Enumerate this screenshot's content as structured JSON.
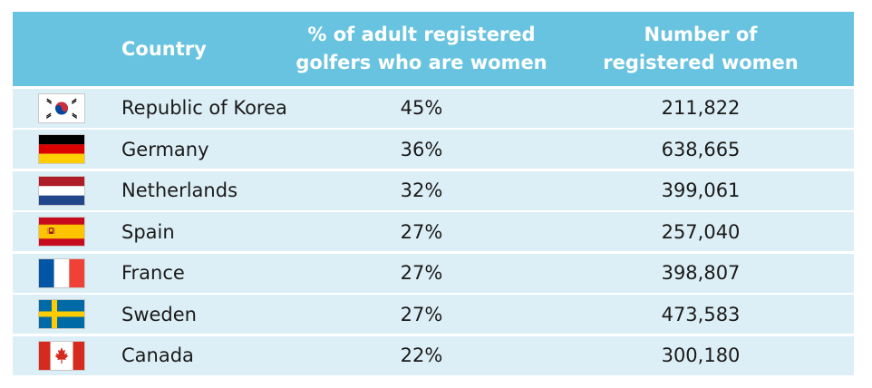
{
  "chart_data": {
    "type": "table",
    "columns": [
      "",
      "Country",
      "% of adult registered golfers who are women",
      "Number of registered women"
    ],
    "header": {
      "country": "Country",
      "pct_line1": "% of adult registered",
      "pct_line2": "golfers who are women",
      "num_line1": "Number of",
      "num_line2": "registered women"
    },
    "rows": [
      {
        "flag": "south-korea-flag-icon",
        "country": "Republic of Korea",
        "pct": "45%",
        "num": "211,822"
      },
      {
        "flag": "germany-flag-icon",
        "country": "Germany",
        "pct": "36%",
        "num": "638,665"
      },
      {
        "flag": "netherlands-flag-icon",
        "country": "Netherlands",
        "pct": "32%",
        "num": "399,061"
      },
      {
        "flag": "spain-flag-icon",
        "country": "Spain",
        "pct": "27%",
        "num": "257,040"
      },
      {
        "flag": "france-flag-icon",
        "country": "France",
        "pct": "27%",
        "num": "398,807"
      },
      {
        "flag": "sweden-flag-icon",
        "country": "Sweden",
        "pct": "27%",
        "num": "473,583"
      },
      {
        "flag": "canada-flag-icon",
        "country": "Canada",
        "pct": "22%",
        "num": "300,180"
      }
    ],
    "values_pct": [
      45,
      36,
      32,
      27,
      27,
      27,
      22
    ],
    "values_num": [
      211822,
      638665,
      399061,
      257040,
      398807,
      473583,
      300180
    ]
  },
  "colors": {
    "header_bg": "#67C3DF",
    "row_bg": "#DDEFF6",
    "header_text": "#FFFFFF",
    "body_text": "#1A1A1A"
  }
}
